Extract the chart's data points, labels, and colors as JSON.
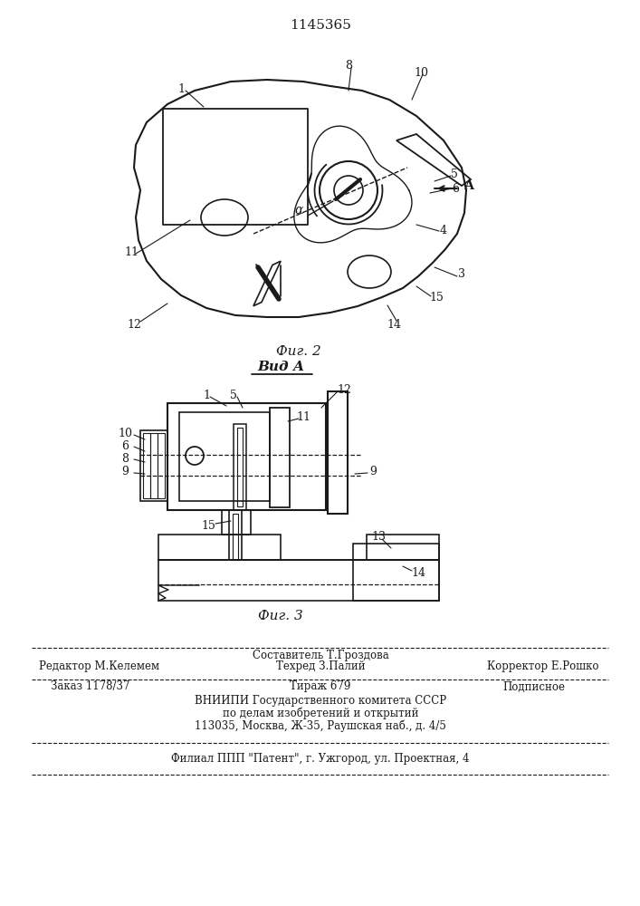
{
  "patent_number": "1145365",
  "fig2_caption": "Фиг. 2",
  "fig3_caption_label": "Вид А",
  "fig3_caption": "Фиг. 3",
  "bg_color": "#ffffff",
  "line_color": "#1a1a1a",
  "footer": {
    "line1_center": "Составитель Т.Гроздова",
    "line2_left": "Редактор М.Келемем",
    "line2_center": "Техред З.Палий",
    "line2_right": "Корректор Е.Рошко",
    "line3_left": "Заказ 1178/37",
    "line3_center": "Тираж 679",
    "line3_right": "Подписное",
    "line4": "ВНИИПИ Государственного комитета СССР",
    "line5": "по делам изобретений и открытий",
    "line6": "113035, Москва, Ж-35, Раушская наб., д. 4/5",
    "line7": "Филиал ППП \"Патент\", г. Ужгород, ул. Проектная, 4"
  }
}
